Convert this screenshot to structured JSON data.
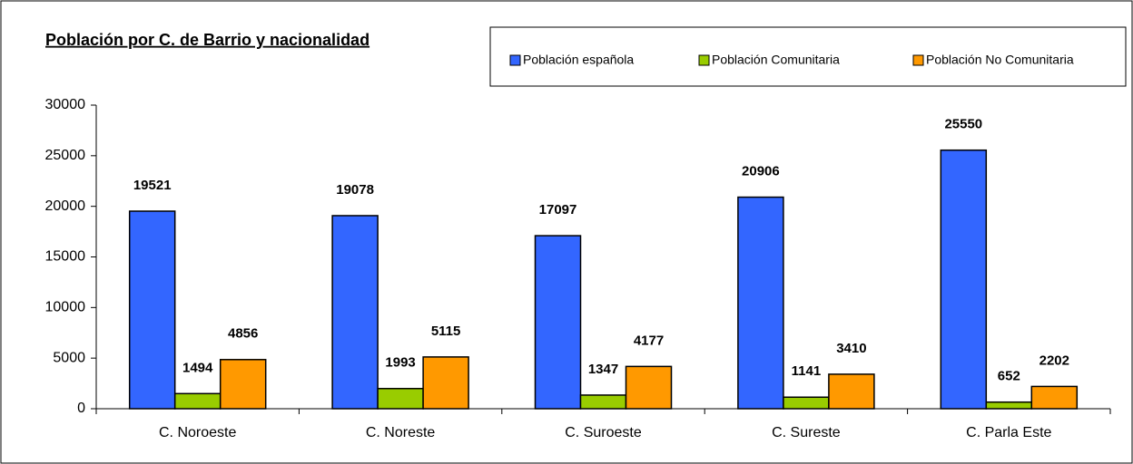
{
  "chart_data": {
    "type": "bar",
    "title": "Población por C. de Barrio y nacionalidad",
    "categories": [
      "C. Noroeste",
      "C. Noreste",
      "C. Suroeste",
      "C. Sureste",
      "C. Parla Este"
    ],
    "series": [
      {
        "name": "Población española",
        "color": "#3366ff",
        "values": [
          19521,
          19078,
          17097,
          20906,
          25550
        ]
      },
      {
        "name": "Población Comunitaria",
        "color": "#99cc00",
        "values": [
          1494,
          1993,
          1347,
          1141,
          652
        ]
      },
      {
        "name": "Población No Comunitaria",
        "color": "#ff9900",
        "values": [
          4856,
          5115,
          4177,
          3410,
          2202
        ]
      }
    ],
    "ylim": [
      0,
      30000
    ],
    "yticks": [
      0,
      5000,
      10000,
      15000,
      20000,
      25000,
      30000
    ]
  }
}
